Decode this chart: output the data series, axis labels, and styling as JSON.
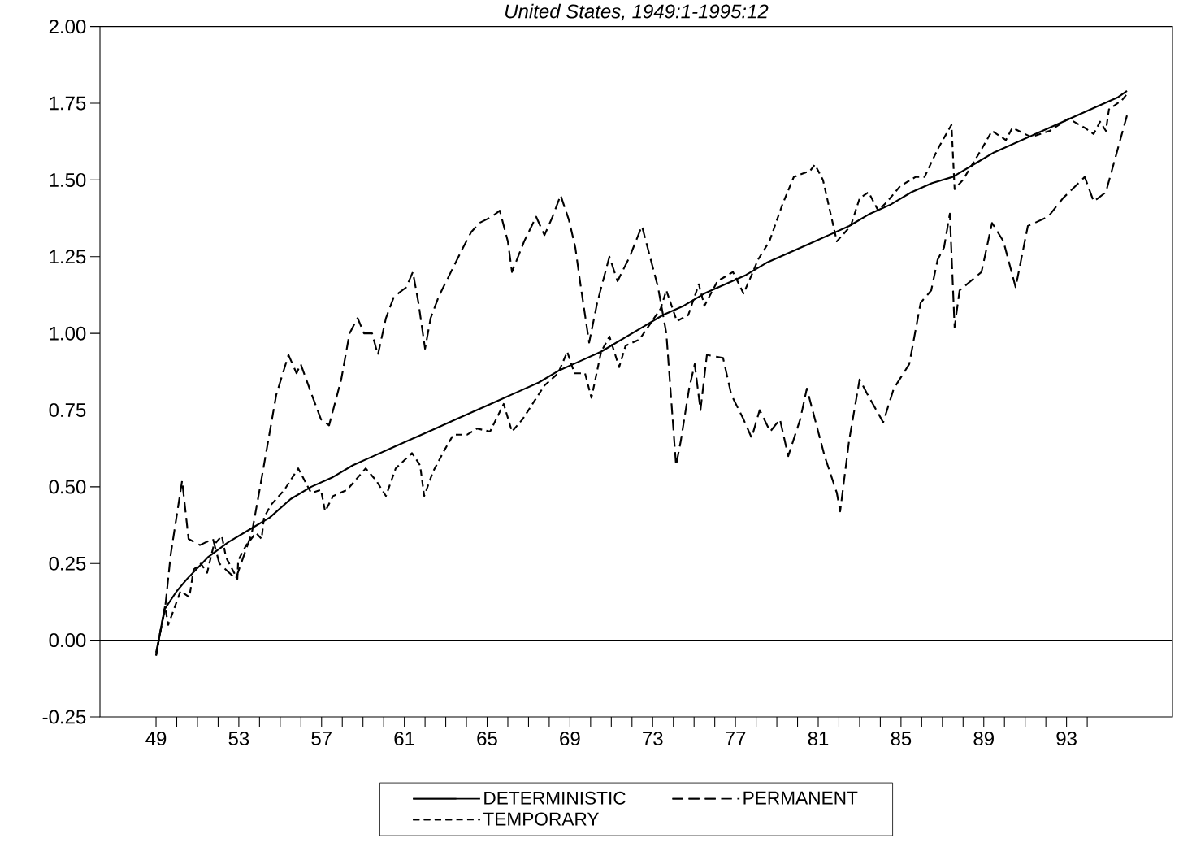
{
  "chart_data": {
    "type": "line",
    "title": "United States, 1949:1-1995:12",
    "xlim": [
      46.29,
      98.12
    ],
    "ylim": [
      -0.25,
      2.0
    ],
    "xticks": [
      49,
      {
        "value": 50,
        "label": null
      },
      {
        "value": 51,
        "label": null
      },
      {
        "value": 52,
        "label": null
      },
      53,
      {
        "value": 54,
        "label": null
      },
      {
        "value": 55,
        "label": null
      },
      {
        "value": 56,
        "label": null
      },
      57,
      {
        "value": 58,
        "label": null
      },
      {
        "value": 59,
        "label": null
      },
      {
        "value": 60,
        "label": null
      },
      61,
      {
        "value": 62,
        "label": null
      },
      {
        "value": 63,
        "label": null
      },
      {
        "value": 64,
        "label": null
      },
      65,
      {
        "value": 66,
        "label": null
      },
      {
        "value": 67,
        "label": null
      },
      {
        "value": 68,
        "label": null
      },
      69,
      {
        "value": 70,
        "label": null
      },
      {
        "value": 71,
        "label": null
      },
      {
        "value": 72,
        "label": null
      },
      73,
      {
        "value": 74,
        "label": null
      },
      {
        "value": 75,
        "label": null
      },
      {
        "value": 76,
        "label": null
      },
      77,
      {
        "value": 78,
        "label": null
      },
      {
        "value": 79,
        "label": null
      },
      {
        "value": 80,
        "label": null
      },
      81,
      {
        "value": 82,
        "label": null
      },
      {
        "value": 83,
        "label": null
      },
      {
        "value": 84,
        "label": null
      },
      85,
      {
        "value": 86,
        "label": null
      },
      {
        "value": 87,
        "label": null
      },
      {
        "value": 88,
        "label": null
      },
      89,
      {
        "value": 90,
        "label": null
      },
      {
        "value": 91,
        "label": null
      },
      {
        "value": 92,
        "label": null
      },
      93,
      {
        "value": 94,
        "label": null
      }
    ],
    "yticks": [
      {
        "value": -0.25,
        "label": "-0.25"
      },
      {
        "value": 0,
        "label": "0.00"
      },
      {
        "value": 0.25,
        "label": "0.25"
      },
      {
        "value": 0.5,
        "label": "0.50"
      },
      {
        "value": 0.75,
        "label": "0.75"
      },
      {
        "value": 1.0,
        "label": "1.00"
      },
      {
        "value": 1.25,
        "label": "1.25"
      },
      {
        "value": 1.5,
        "label": "1.50"
      },
      {
        "value": 1.75,
        "label": "1.75"
      },
      {
        "value": 2.0,
        "label": "2.00"
      }
    ],
    "ref_lines": [
      {
        "axis": "y",
        "value": 0,
        "color": "#000000"
      }
    ],
    "grid": false,
    "legend": "bottom",
    "marker": "none",
    "series": [
      {
        "name": "DETERMINISTIC",
        "color": "#000000",
        "line_style": "solid",
        "x": [
          49.0,
          49.4,
          50.0,
          50.5,
          51.5,
          52.5,
          53.5,
          54.5,
          55.5,
          56.5,
          57.5,
          58.5,
          59.5,
          60.5,
          61.5,
          62.5,
          63.5,
          64.5,
          65.5,
          66.5,
          67.5,
          68.5,
          69.5,
          70.5,
          71.5,
          72.5,
          73.5,
          74.5,
          75.5,
          76.5,
          77.5,
          78.5,
          79.5,
          80.5,
          81.5,
          82.5,
          83.5,
          84.5,
          85.5,
          86.5,
          87.5,
          88.5,
          89.5,
          90.5,
          91.5,
          92.5,
          93.5,
          94.5,
          95.5,
          95.92
        ],
        "values": [
          -0.05,
          0.1,
          0.16,
          0.2,
          0.27,
          0.32,
          0.36,
          0.4,
          0.46,
          0.5,
          0.53,
          0.57,
          0.6,
          0.63,
          0.66,
          0.69,
          0.72,
          0.75,
          0.78,
          0.81,
          0.84,
          0.88,
          0.91,
          0.94,
          0.98,
          1.02,
          1.06,
          1.09,
          1.13,
          1.16,
          1.19,
          1.23,
          1.26,
          1.29,
          1.32,
          1.35,
          1.39,
          1.42,
          1.46,
          1.49,
          1.51,
          1.55,
          1.59,
          1.62,
          1.65,
          1.68,
          1.71,
          1.74,
          1.77,
          1.79
        ]
      },
      {
        "name": "PERMANENT",
        "color": "#000000",
        "line_style": "dashed",
        "x": [
          49.0,
          49.43,
          49.71,
          50.1,
          50.26,
          50.57,
          51.12,
          51.75,
          52.06,
          52.85,
          53.63,
          54.03,
          54.42,
          54.81,
          55.4,
          55.79,
          55.99,
          56.58,
          56.97,
          57.36,
          57.95,
          58.35,
          58.74,
          59.05,
          59.44,
          59.72,
          60.11,
          60.5,
          61.09,
          61.41,
          61.68,
          62.0,
          62.27,
          62.66,
          63.25,
          63.84,
          64.23,
          64.63,
          65.22,
          65.61,
          66.0,
          66.2,
          66.79,
          67.37,
          67.77,
          68.16,
          68.55,
          68.95,
          69.26,
          69.53,
          69.93,
          70.32,
          70.91,
          71.3,
          71.89,
          72.48,
          72.87,
          73.26,
          73.66,
          74.13,
          74.36,
          74.76,
          75.03,
          75.31,
          75.62,
          76.4,
          76.8,
          77.39,
          77.78,
          78.17,
          78.68,
          79.15,
          79.55,
          80.13,
          80.45,
          80.92,
          81.31,
          81.9,
          82.06,
          82.49,
          83.0,
          83.39,
          84.14,
          84.65,
          85.4,
          85.95,
          86.46,
          86.77,
          87.08,
          87.36,
          87.59,
          87.83,
          88.89,
          89.4,
          89.95,
          90.54,
          91.13,
          92.11,
          92.82,
          93.88,
          94.31,
          94.9,
          95.92
        ],
        "values": [
          -0.04,
          0.1,
          0.28,
          0.45,
          0.52,
          0.33,
          0.31,
          0.33,
          0.25,
          0.2,
          0.35,
          0.5,
          0.65,
          0.8,
          0.93,
          0.87,
          0.9,
          0.79,
          0.72,
          0.7,
          0.85,
          1.0,
          1.05,
          1.0,
          1.0,
          0.93,
          1.05,
          1.12,
          1.15,
          1.2,
          1.1,
          0.95,
          1.05,
          1.12,
          1.2,
          1.28,
          1.33,
          1.36,
          1.38,
          1.4,
          1.3,
          1.2,
          1.3,
          1.38,
          1.32,
          1.38,
          1.45,
          1.37,
          1.28,
          1.15,
          0.97,
          1.1,
          1.25,
          1.17,
          1.25,
          1.35,
          1.25,
          1.15,
          1.0,
          0.57,
          0.65,
          0.82,
          0.9,
          0.75,
          0.93,
          0.92,
          0.8,
          0.72,
          0.66,
          0.75,
          0.68,
          0.72,
          0.6,
          0.72,
          0.82,
          0.7,
          0.6,
          0.48,
          0.42,
          0.65,
          0.85,
          0.8,
          0.71,
          0.82,
          0.9,
          1.1,
          1.14,
          1.24,
          1.28,
          1.39,
          1.02,
          1.14,
          1.2,
          1.36,
          1.3,
          1.15,
          1.35,
          1.38,
          1.44,
          1.51,
          1.43,
          1.46,
          1.71
        ]
      },
      {
        "name": "TEMPORARY",
        "color": "#000000",
        "line_style": "dashed",
        "x": [
          49.0,
          49.43,
          49.59,
          50.18,
          50.61,
          50.81,
          51.16,
          51.47,
          51.79,
          52.18,
          52.38,
          52.93,
          52.97,
          53.36,
          53.83,
          54.1,
          54.22,
          54.54,
          55.2,
          55.87,
          56.26,
          56.5,
          56.97,
          57.17,
          57.56,
          58.23,
          59.13,
          59.64,
          60.11,
          60.58,
          61.37,
          61.76,
          61.96,
          62.39,
          62.94,
          63.37,
          64.04,
          64.51,
          65.14,
          65.8,
          66.2,
          66.71,
          67.77,
          68.43,
          68.87,
          69.22,
          69.73,
          70.04,
          70.51,
          70.91,
          71.38,
          71.69,
          72.36,
          73.38,
          73.66,
          74.17,
          74.72,
          75.23,
          75.5,
          76.13,
          76.88,
          77.39,
          77.78,
          78.09,
          78.64,
          79.27,
          79.82,
          80.61,
          80.84,
          81.23,
          81.9,
          82.57,
          83.0,
          83.43,
          83.9,
          84.34,
          84.96,
          85.71,
          86.14,
          86.77,
          87.44,
          87.59,
          87.99,
          88.89,
          89.4,
          90.07,
          90.38,
          91.29,
          92.19,
          93.09,
          93.88,
          94.31,
          94.62,
          94.9,
          95.05,
          95.68,
          95.92
        ],
        "values": [
          -0.05,
          0.11,
          0.05,
          0.16,
          0.14,
          0.23,
          0.25,
          0.22,
          0.31,
          0.34,
          0.27,
          0.2,
          0.26,
          0.31,
          0.35,
          0.33,
          0.4,
          0.44,
          0.49,
          0.56,
          0.51,
          0.48,
          0.49,
          0.42,
          0.47,
          0.49,
          0.56,
          0.52,
          0.47,
          0.56,
          0.61,
          0.57,
          0.47,
          0.55,
          0.62,
          0.67,
          0.67,
          0.69,
          0.68,
          0.77,
          0.68,
          0.72,
          0.83,
          0.87,
          0.94,
          0.87,
          0.87,
          0.79,
          0.94,
          0.99,
          0.89,
          0.96,
          0.98,
          1.08,
          1.14,
          1.04,
          1.06,
          1.16,
          1.09,
          1.17,
          1.2,
          1.13,
          1.19,
          1.24,
          1.3,
          1.42,
          1.51,
          1.53,
          1.55,
          1.5,
          1.3,
          1.35,
          1.44,
          1.46,
          1.4,
          1.43,
          1.48,
          1.51,
          1.51,
          1.6,
          1.68,
          1.47,
          1.5,
          1.6,
          1.66,
          1.63,
          1.67,
          1.64,
          1.66,
          1.7,
          1.67,
          1.65,
          1.69,
          1.66,
          1.73,
          1.76,
          1.78
        ]
      }
    ]
  }
}
